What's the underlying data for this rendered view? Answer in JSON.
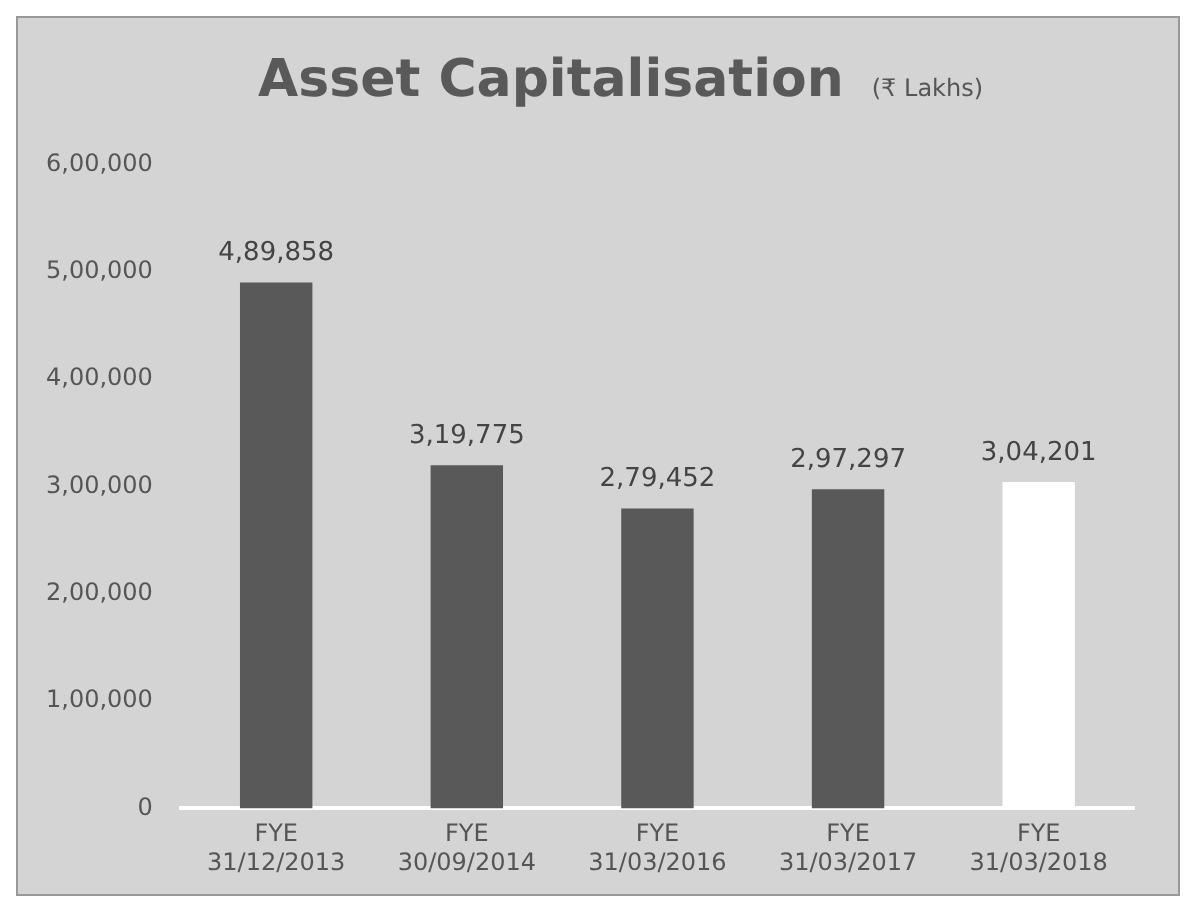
{
  "chart_data": {
    "type": "bar",
    "title": "Asset Capitalisation",
    "subtitle": "(₹ Lakhs)",
    "categories": [
      "FYE\n31/12/2013",
      "FYE\n30/09/2014",
      "FYE\n31/03/2016",
      "FYE\n31/03/2017",
      "FYE\n31/03/2018"
    ],
    "values": [
      489858,
      319775,
      279452,
      297297,
      304201
    ],
    "value_labels": [
      "4,89,858",
      "3,19,775",
      "2,79,452",
      "2,97,297",
      "3,04,201"
    ],
    "colors": [
      "#595959",
      "#595959",
      "#595959",
      "#595959",
      "#ffffff"
    ],
    "ylim": [
      0,
      600000
    ],
    "yticks": [
      {
        "value": 0,
        "label": "0"
      },
      {
        "value": 100000,
        "label": "1,00,000"
      },
      {
        "value": 200000,
        "label": "2,00,000"
      },
      {
        "value": 300000,
        "label": "3,00,000"
      },
      {
        "value": 400000,
        "label": "4,00,000"
      },
      {
        "value": 500000,
        "label": "5,00,000"
      },
      {
        "value": 600000,
        "label": "6,00,000"
      }
    ],
    "grid": false,
    "legend": false
  }
}
